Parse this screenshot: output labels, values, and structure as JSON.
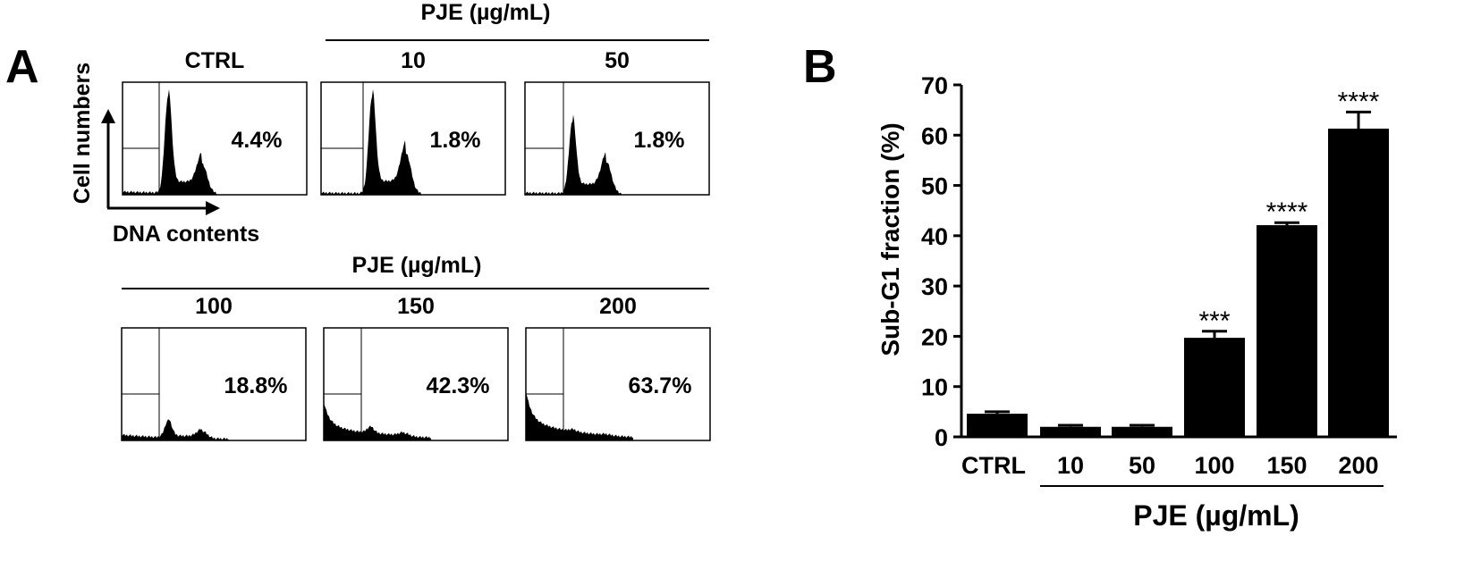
{
  "panel_a": {
    "letter": "A",
    "y_axis_label": "Cell numbers",
    "x_axis_label": "DNA contents",
    "top_group_header": "PJE (µg/mL)",
    "bottom_group_header": "PJE (µg/mL)",
    "histograms": [
      {
        "label": "CTRL",
        "sub_g1": "4.4%",
        "g1_peak": 0.92,
        "g2_peak": 0.28,
        "debris": 0.05
      },
      {
        "label": "10",
        "sub_g1": "1.8%",
        "g1_peak": 0.92,
        "g2_peak": 0.38,
        "debris": 0.02
      },
      {
        "label": "50",
        "sub_g1": "1.8%",
        "g1_peak": 0.68,
        "g2_peak": 0.3,
        "debris": 0.02
      },
      {
        "label": "100",
        "sub_g1": "18.8%",
        "g1_peak": 0.16,
        "g2_peak": 0.07,
        "debris": 0.12
      },
      {
        "label": "150",
        "sub_g1": "42.3%",
        "g1_peak": 0.06,
        "g2_peak": 0.03,
        "debris": 0.42
      },
      {
        "label": "200",
        "sub_g1": "63.7%",
        "g1_peak": 0.02,
        "g2_peak": 0.01,
        "debris": 0.55
      }
    ]
  },
  "chart_data": {
    "type": "bar",
    "panel_letter": "B",
    "title": "",
    "xlabel": "PJE (µg/mL)",
    "ylabel": "Sub-G1 fraction (%)",
    "ylim": [
      0,
      70
    ],
    "yticks": [
      "0",
      "10",
      "20",
      "30",
      "40",
      "50",
      "60",
      "70"
    ],
    "categories": [
      "CTRL",
      "10",
      "50",
      "100",
      "150",
      "200"
    ],
    "values": [
      4.6,
      2.0,
      2.0,
      19.7,
      42.1,
      61.3
    ],
    "errors": [
      0.4,
      0.3,
      0.3,
      1.3,
      0.5,
      3.3
    ],
    "significance": [
      "",
      "",
      "",
      "***",
      "****",
      "****"
    ]
  }
}
